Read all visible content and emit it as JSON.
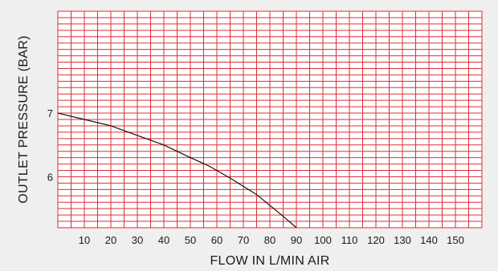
{
  "chart_data": {
    "type": "line",
    "title": "",
    "xlabel": "FLOW  IN  L/MIN AIR",
    "ylabel": "OUTLET  PRESSURE (BAR)",
    "xlim": [
      0,
      160
    ],
    "ylim": [
      5.2,
      8.6
    ],
    "x_ticks": [
      10,
      20,
      30,
      40,
      50,
      60,
      70,
      80,
      90,
      100,
      110,
      120,
      130,
      140,
      150
    ],
    "y_ticks": [
      6,
      7
    ],
    "grid": true,
    "colors": {
      "grid": "#d9303a",
      "line": "#111111",
      "background": "#efefef",
      "plot_bg": "#ffffff"
    },
    "series": [
      {
        "x": [
          0,
          10,
          20,
          30,
          40,
          50,
          57,
          65,
          75,
          85,
          90
        ],
        "y": [
          7.0,
          6.9,
          6.8,
          6.65,
          6.5,
          6.3,
          6.17,
          5.98,
          5.72,
          5.38,
          5.2
        ]
      }
    ]
  }
}
